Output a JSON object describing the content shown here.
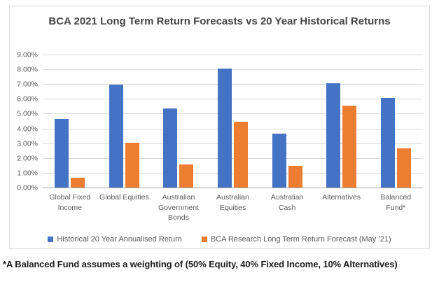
{
  "footnote": "*A Balanced Fund assumes a weighting of (50% Equity, 40% Fixed Income, 10% Alternatives)",
  "chart_data": {
    "type": "bar",
    "title": "BCA 2021 Long Term Return Forecasts vs 20 Year Historical Returns",
    "xlabel": "",
    "ylabel": "",
    "ylim": [
      0,
      9
    ],
    "ytick_step": 1,
    "ytick_labels": [
      "0.00%",
      "1.00%",
      "2.00%",
      "3.00%",
      "4.00%",
      "5.00%",
      "6.00%",
      "7.00%",
      "8.00%",
      "9.00%"
    ],
    "grid": true,
    "legend_position": "bottom",
    "categories": [
      "Global Fixed Income",
      "Global Equities",
      "Australian Government Bonds",
      "Australian Equities",
      "Australian Cash",
      "Alternatives",
      "Balanced Fund*"
    ],
    "series": [
      {
        "key": "historical",
        "name": "Historical 20 Year Annualised Return",
        "color": "#4472C4",
        "values": [
          4.7,
          7.0,
          5.4,
          8.1,
          3.7,
          7.1,
          6.1
        ]
      },
      {
        "key": "forecast",
        "name": "BCA Research Long Term Return Forecast (May ’21)",
        "color": "#ED7D31",
        "values": [
          0.7,
          3.1,
          1.6,
          4.5,
          1.5,
          5.6,
          2.7
        ]
      }
    ]
  },
  "colors": {
    "gridline": "#d9d9d9",
    "axis_line": "#a6a6a6",
    "axis_text": "#595959",
    "title_text": "#454545",
    "chart_border": "#d9d9d9"
  }
}
